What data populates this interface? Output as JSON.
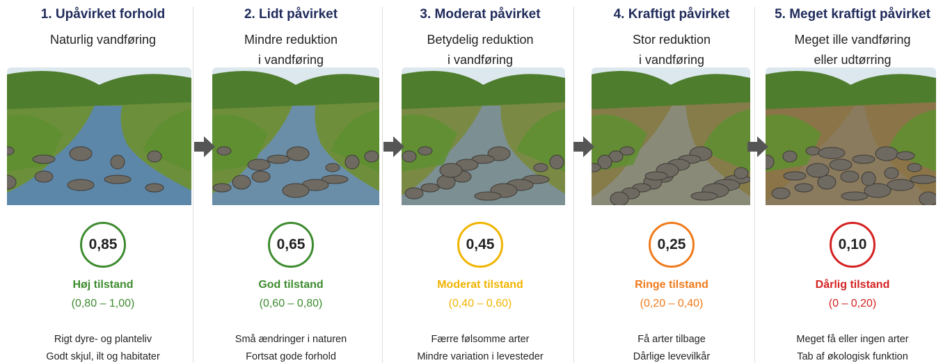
{
  "columns": [
    {
      "title": "1. Upåvirket forhold",
      "subtitle": [
        "Naturlig vandføring"
      ],
      "score": "0,85",
      "status": "Høj tilstand",
      "range": "(0,80 – 1,00)",
      "notes": [
        "Rigt dyre- og planteliv",
        "Godt skjul, ilt og habitater"
      ]
    },
    {
      "title": "2. Lidt påvirket",
      "subtitle": [
        "Mindre reduktion",
        "i vandføring"
      ],
      "score": "0,65",
      "status": "God tilstand",
      "range": "(0,60 – 0,80)",
      "notes": [
        "Små ændringer i naturen",
        "Fortsat gode forhold"
      ]
    },
    {
      "title": "3. Moderat påvirket",
      "subtitle": [
        "Betydelig reduktion",
        "i vandføring"
      ],
      "score": "0,45",
      "status": "Moderat tilstand",
      "range": "(0,40 – 0,60)",
      "notes": [
        "Færre følsomme arter",
        "Mindre variation i levesteder"
      ]
    },
    {
      "title": "4. Kraftigt påvirket",
      "subtitle": [
        "Stor reduktion",
        "i vandføring"
      ],
      "score": "0,25",
      "status": "Ringe tilstand",
      "range": "(0,20 – 0,40)",
      "notes": [
        "Få arter tilbage",
        "Dårlige levevilkår"
      ]
    },
    {
      "title": "5. Meget kraftigt påvirket",
      "subtitle": [
        "Meget ille vandføring",
        "eller udtørring"
      ],
      "score": "0,10",
      "status": "Dårlig tilstand",
      "range": "(0 – 0,20)",
      "notes": [
        "Meget få eller ingen arter",
        "Tab af økologisk funktion"
      ]
    }
  ]
}
